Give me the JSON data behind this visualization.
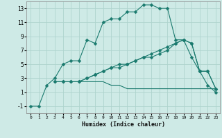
{
  "xlabel": "Humidex (Indice chaleur)",
  "bg_color": "#ceeae6",
  "grid_color": "#aed4ce",
  "line_color": "#1a7a6e",
  "xlim": [
    -0.5,
    23.5
  ],
  "ylim": [
    -2,
    14
  ],
  "xticks": [
    0,
    1,
    2,
    3,
    4,
    5,
    6,
    7,
    8,
    9,
    10,
    11,
    12,
    13,
    14,
    15,
    16,
    17,
    18,
    19,
    20,
    21,
    22,
    23
  ],
  "yticks": [
    -1,
    1,
    3,
    5,
    7,
    9,
    11,
    13
  ],
  "line1_x": [
    0,
    1,
    2,
    3,
    4,
    5,
    6,
    7,
    8,
    9,
    10,
    11,
    12,
    13,
    14,
    15,
    16,
    17,
    18,
    19,
    20,
    21,
    22,
    23
  ],
  "line1_y": [
    -1,
    -1,
    2,
    3,
    5,
    5.5,
    5.5,
    8.5,
    8,
    11,
    11.5,
    11.5,
    12.5,
    12.5,
    13.5,
    13.5,
    13,
    13,
    8.5,
    8.5,
    6,
    4,
    2,
    1
  ],
  "line2_x": [
    3,
    4,
    5,
    6,
    7,
    8,
    9,
    10,
    11,
    12,
    13,
    14,
    15,
    16,
    17,
    18,
    19,
    20,
    21,
    22,
    23
  ],
  "line2_y": [
    2.5,
    2.5,
    2.5,
    2.5,
    3,
    3.5,
    4,
    4.5,
    4.5,
    5,
    5.5,
    6,
    6,
    6.5,
    7,
    8,
    8.5,
    8,
    4,
    4,
    1.5
  ],
  "line3_x": [
    3,
    4,
    5,
    6,
    7,
    8,
    9,
    10,
    11,
    12,
    13,
    14,
    15,
    16,
    17,
    18,
    19,
    20,
    21,
    22,
    23
  ],
  "line3_y": [
    2.5,
    2.5,
    2.5,
    2.5,
    2.5,
    2.5,
    2.5,
    2,
    2,
    1.5,
    1.5,
    1.5,
    1.5,
    1.5,
    1.5,
    1.5,
    1.5,
    1.5,
    1.5,
    1.5,
    1.5
  ],
  "line4_x": [
    3,
    4,
    5,
    6,
    7,
    8,
    9,
    10,
    11,
    12,
    13,
    14,
    15,
    16,
    17,
    18,
    19,
    20,
    21,
    22,
    23
  ],
  "line4_y": [
    2.5,
    2.5,
    2.5,
    2.5,
    3,
    3.5,
    4,
    4.5,
    5,
    5,
    5.5,
    6,
    6.5,
    7,
    7.5,
    8,
    8.5,
    8,
    4,
    4,
    1.5
  ]
}
